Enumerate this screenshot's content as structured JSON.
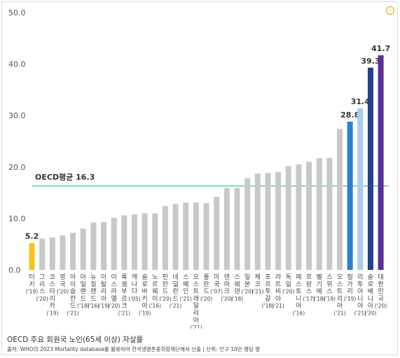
{
  "caption": "OECD 주요 회원국 노인(65세 이상) 자살률",
  "source": "출처: WHO의 2023 Mortality database를 활용하여 한국생명존중희망재단에서 산출 | 단위: 인구 10만 명당 명",
  "info_icon": "info-icon",
  "chart_data": {
    "type": "bar",
    "title": "",
    "xlabel": "",
    "ylabel": "",
    "ylim": [
      0,
      50
    ],
    "yticks": [
      "0.0",
      "10.0",
      "20.0",
      "30.0",
      "40.0",
      "50.0"
    ],
    "grid": false,
    "legend": "none",
    "average": {
      "label": "OECD평균 16.3",
      "value": 16.3,
      "color": "#5fc9c4"
    },
    "categories": [
      {
        "name": "터키",
        "year": "'19",
        "value": 5.2,
        "color": "#f5c518",
        "label": "5.2"
      },
      {
        "name": "그리스",
        "year": "'20",
        "value": 6.1,
        "color": "#c8c8c8"
      },
      {
        "name": "코스타리카",
        "year": "'19",
        "value": 6.3,
        "color": "#c8c8c8"
      },
      {
        "name": "영국",
        "year": "'20",
        "value": 6.7,
        "color": "#c8c8c8"
      },
      {
        "name": "아이슬란드",
        "year": "'21",
        "value": 7.2,
        "color": "#c8c8c8"
      },
      {
        "name": "아일랜드",
        "year": "'18",
        "value": 8.0,
        "color": "#c8c8c8"
      },
      {
        "name": "뉴질랜드",
        "year": "'16",
        "value": 9.2,
        "color": "#c8c8c8"
      },
      {
        "name": "이탈리아",
        "year": "'19",
        "value": 9.3,
        "color": "#c8c8c8"
      },
      {
        "name": "이스라엘",
        "year": "'20",
        "value": 10.1,
        "color": "#c8c8c8"
      },
      {
        "name": "룩셈부르크",
        "year": "'21",
        "value": 10.6,
        "color": "#c8c8c8"
      },
      {
        "name": "캐나다",
        "year": "'05",
        "value": 10.8,
        "color": "#c8c8c8"
      },
      {
        "name": "슬로바키아",
        "year": "'19",
        "value": 11.0,
        "color": "#c8c8c8"
      },
      {
        "name": "노르웨이",
        "year": "'16",
        "value": 11.0,
        "color": "#c8c8c8"
      },
      {
        "name": "핀란드",
        "year": "'20",
        "value": 12.4,
        "color": "#c8c8c8"
      },
      {
        "name": "네덜란드",
        "year": "'21",
        "value": 12.8,
        "color": "#c8c8c8"
      },
      {
        "name": "스페인",
        "year": "'21",
        "value": 13.1,
        "color": "#c8c8c8"
      },
      {
        "name": "오스트레일리아",
        "year": "'21",
        "value": 13.1,
        "color": "#c8c8c8"
      },
      {
        "name": "폴란드",
        "year": "'20",
        "value": 13.0,
        "color": "#c8c8c8"
      },
      {
        "name": "미국",
        "year": "'07",
        "value": 14.2,
        "color": "#c8c8c8"
      },
      {
        "name": "덴마크",
        "year": "'20",
        "value": 15.9,
        "color": "#c8c8c8"
      },
      {
        "name": "스웨덴",
        "year": "'18",
        "value": 15.9,
        "color": "#c8c8c8"
      },
      {
        "name": "일본",
        "year": "'20",
        "value": 17.8,
        "color": "#c8c8c8"
      },
      {
        "name": "체코",
        "year": "'21",
        "value": 18.7,
        "color": "#c8c8c8"
      },
      {
        "name": "포르투갈",
        "year": "'18",
        "value": 18.8,
        "color": "#c8c8c8"
      },
      {
        "name": "라트비아",
        "year": "'21",
        "value": 19.0,
        "color": "#c8c8c8"
      },
      {
        "name": "독일",
        "year": "'20",
        "value": 20.2,
        "color": "#c8c8c8"
      },
      {
        "name": "에스토니아",
        "year": "'16",
        "value": 20.5,
        "color": "#c8c8c8"
      },
      {
        "name": "프랑스",
        "year": "'17",
        "value": 21.0,
        "color": "#c8c8c8"
      },
      {
        "name": "벨기에",
        "year": "'18",
        "value": 21.7,
        "color": "#c8c8c8"
      },
      {
        "name": "스위스",
        "year": "'19",
        "value": 21.8,
        "color": "#c8c8c8"
      },
      {
        "name": "오스트리아",
        "year": "'21",
        "value": 27.4,
        "color": "#c8c8c8"
      },
      {
        "name": "헝가리",
        "year": "'19",
        "value": 28.8,
        "color": "#2f7fd1",
        "label": "28.8"
      },
      {
        "name": "리투아니아",
        "year": "'21",
        "value": 31.4,
        "color": "#a9cdef",
        "label": "31.4"
      },
      {
        "name": "슬로베니아",
        "year": "'20",
        "value": 39.3,
        "color": "#23418f",
        "label": "39.3"
      },
      {
        "name": "대한민국",
        "year": "'20",
        "value": 41.7,
        "color": "#5a2f93",
        "label": "41.7"
      }
    ]
  }
}
